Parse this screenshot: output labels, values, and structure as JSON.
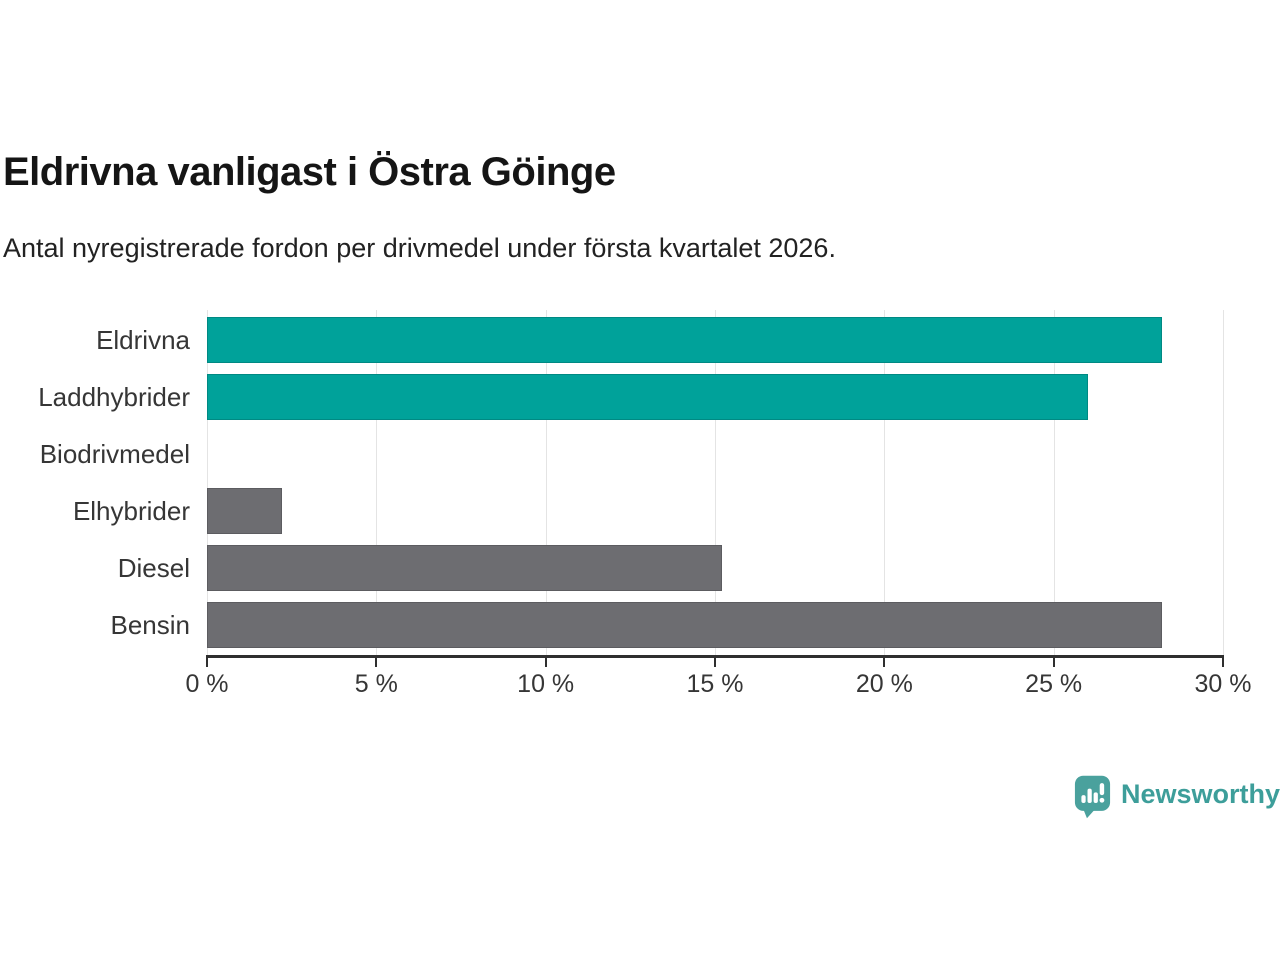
{
  "header": {
    "title": "Eldrivna vanligast i Östra Göinge",
    "subtitle": "Antal nyregistrerade fordon per drivmedel under första kvartalet 2026."
  },
  "chart_data": {
    "type": "bar",
    "orientation": "horizontal",
    "title": "Eldrivna vanligast i Östra Göinge",
    "subtitle": "Antal nyregistrerade fordon per drivmedel under första kvartalet 2026.",
    "categories": [
      "Eldrivna",
      "Laddhybrider",
      "Biodrivmedel",
      "Elhybrider",
      "Diesel",
      "Bensin"
    ],
    "values": [
      28.2,
      26.0,
      0,
      2.2,
      15.2,
      28.2
    ],
    "unit": "%",
    "xlim": [
      0,
      30
    ],
    "x_tick_values": [
      0,
      5,
      10,
      15,
      20,
      25,
      30
    ],
    "x_tick_labels": [
      "0 %",
      "5 %",
      "10 %",
      "15 %",
      "20 %",
      "25 %",
      "30 %"
    ],
    "grid": "vertical-on",
    "legend": "none",
    "colors": {
      "highlight": "#00a29a",
      "default": "#6d6d71",
      "gridline": "#e4e4e4",
      "axis": "#2f2f2f"
    },
    "bar_colors": [
      "#00a29a",
      "#00a29a",
      "#6d6d71",
      "#6d6d71",
      "#6d6d71",
      "#6d6d71"
    ]
  },
  "footer": {
    "logo_text": "Newsworthy",
    "logo_icon": "bar-chart-speech-bubble-icon",
    "logo_color": "#4aa19d"
  }
}
